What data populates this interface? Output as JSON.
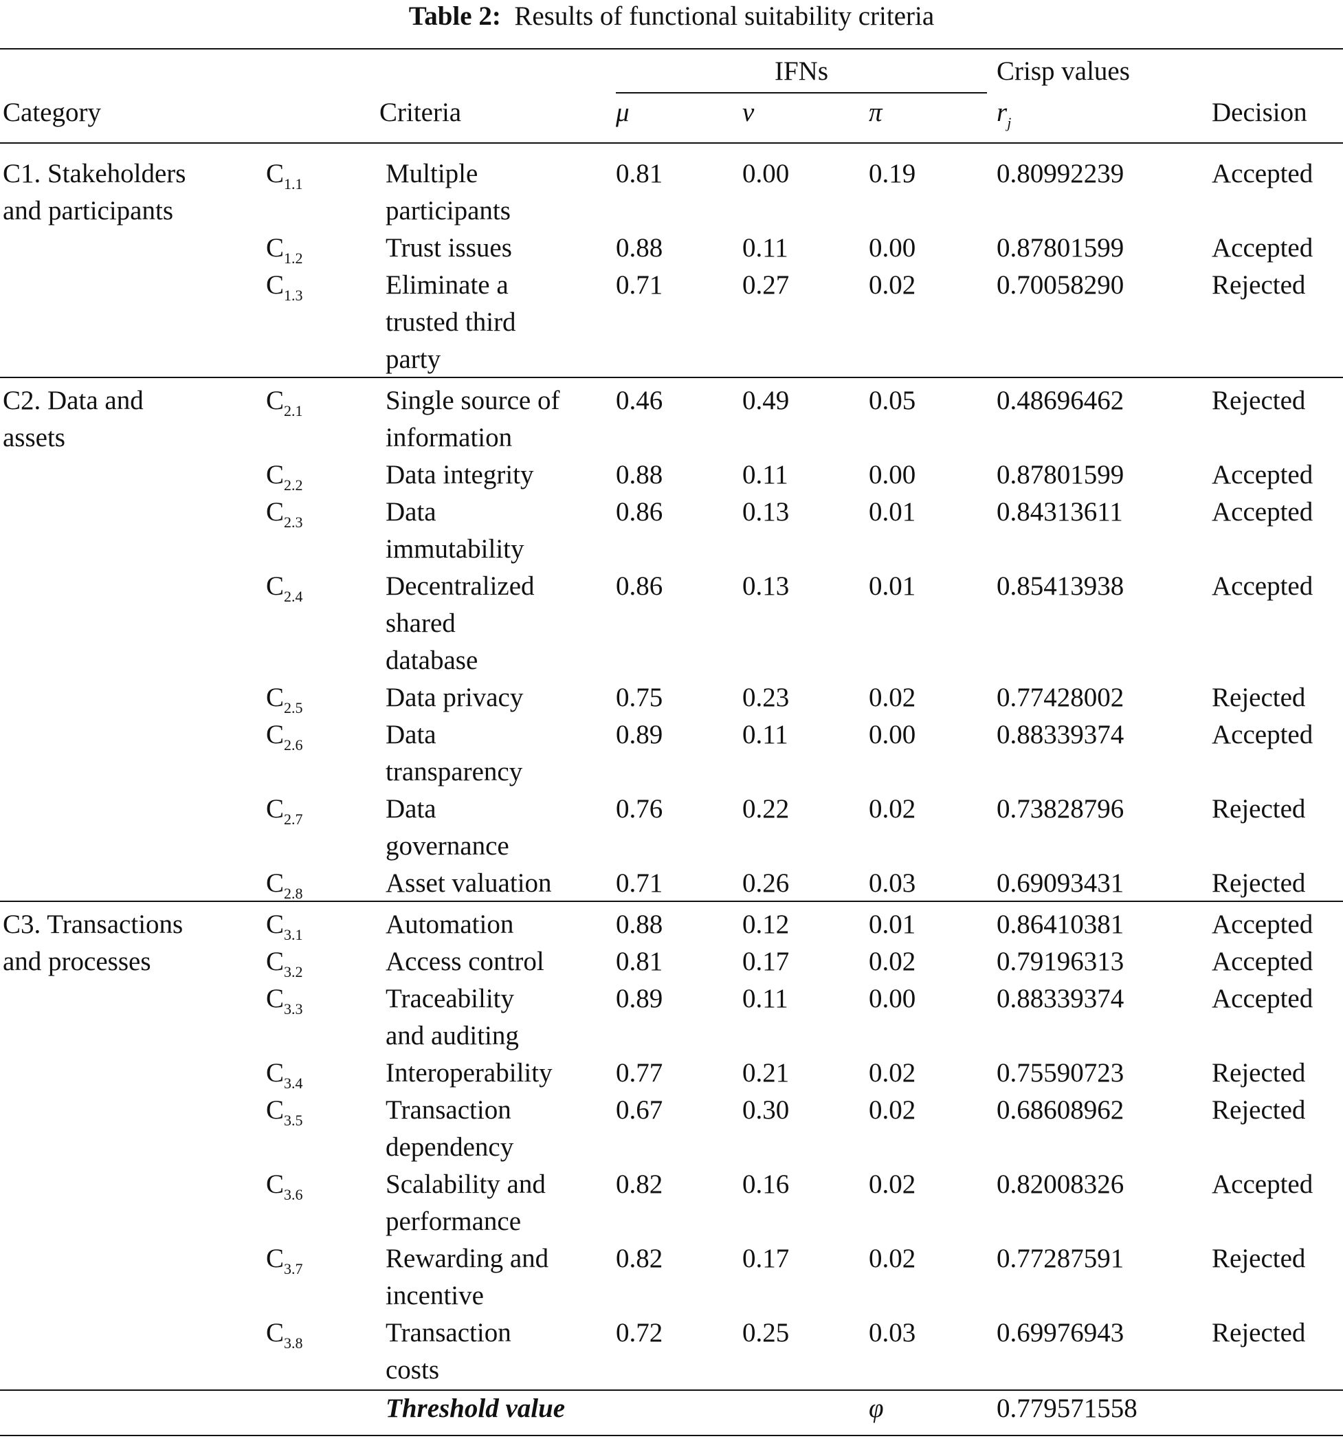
{
  "title": {
    "label": "Table 2:",
    "text": "Results of functional suitability criteria"
  },
  "header": {
    "group_ifns": "IFNs",
    "group_crisp": "Crisp values",
    "category": "Category",
    "criteria": "Criteria",
    "mu": "μ",
    "nu": "v",
    "pi": "π",
    "r": {
      "base": "r",
      "sub": "j"
    },
    "decision": "Decision"
  },
  "groups": [
    {
      "category": [
        "C1. Stakeholders",
        "and participants"
      ],
      "rows": [
        {
          "code": {
            "base": "C",
            "sub": "1.1"
          },
          "criteria": [
            "Multiple",
            "participants"
          ],
          "mu": "0.81",
          "nu": "0.00",
          "pi": "0.19",
          "r": "0.80992239",
          "decision": "Accepted"
        },
        {
          "code": {
            "base": "C",
            "sub": "1.2"
          },
          "criteria": [
            "Trust issues"
          ],
          "mu": "0.88",
          "nu": "0.11",
          "pi": "0.00",
          "r": "0.87801599",
          "decision": "Accepted"
        },
        {
          "code": {
            "base": "C",
            "sub": "1.3"
          },
          "criteria": [
            "Eliminate a",
            "trusted third",
            "party"
          ],
          "mu": "0.71",
          "nu": "0.27",
          "pi": "0.02",
          "r": "0.70058290",
          "decision": "Rejected"
        }
      ]
    },
    {
      "category": [
        "C2. Data and",
        "assets"
      ],
      "rows": [
        {
          "code": {
            "base": "C",
            "sub": "2.1"
          },
          "criteria": [
            "Single source of",
            "information"
          ],
          "mu": "0.46",
          "nu": "0.49",
          "pi": "0.05",
          "r": "0.48696462",
          "decision": "Rejected"
        },
        {
          "code": {
            "base": "C",
            "sub": "2.2"
          },
          "criteria": [
            "Data integrity"
          ],
          "mu": "0.88",
          "nu": "0.11",
          "pi": "0.00",
          "r": "0.87801599",
          "decision": "Accepted"
        },
        {
          "code": {
            "base": "C",
            "sub": "2.3"
          },
          "criteria": [
            "Data",
            "immutability"
          ],
          "mu": "0.86",
          "nu": "0.13",
          "pi": "0.01",
          "r": "0.84313611",
          "decision": "Accepted"
        },
        {
          "code": {
            "base": "C",
            "sub": "2.4"
          },
          "criteria": [
            "Decentralized",
            "shared",
            "database"
          ],
          "mu": "0.86",
          "nu": "0.13",
          "pi": "0.01",
          "r": "0.85413938",
          "decision": "Accepted"
        },
        {
          "code": {
            "base": "C",
            "sub": "2.5"
          },
          "criteria": [
            "Data privacy"
          ],
          "mu": "0.75",
          "nu": "0.23",
          "pi": "0.02",
          "r": "0.77428002",
          "decision": "Rejected"
        },
        {
          "code": {
            "base": "C",
            "sub": "2.6"
          },
          "criteria": [
            "Data",
            "transparency"
          ],
          "mu": "0.89",
          "nu": "0.11",
          "pi": "0.00",
          "r": "0.88339374",
          "decision": "Accepted"
        },
        {
          "code": {
            "base": "C",
            "sub": "2.7"
          },
          "criteria": [
            "Data",
            "governance"
          ],
          "mu": "0.76",
          "nu": "0.22",
          "pi": "0.02",
          "r": "0.73828796",
          "decision": "Rejected"
        },
        {
          "code": {
            "base": "C",
            "sub": "2.8"
          },
          "criteria": [
            "Asset valuation"
          ],
          "mu": "0.71",
          "nu": "0.26",
          "pi": "0.03",
          "r": "0.69093431",
          "decision": "Rejected"
        }
      ]
    },
    {
      "category": [
        "C3. Transactions",
        "and processes"
      ],
      "rows": [
        {
          "code": {
            "base": "C",
            "sub": "3.1"
          },
          "criteria": [
            "Automation"
          ],
          "mu": "0.88",
          "nu": "0.12",
          "pi": "0.01",
          "r": "0.86410381",
          "decision": "Accepted"
        },
        {
          "code": {
            "base": "C",
            "sub": "3.2"
          },
          "criteria": [
            "Access control"
          ],
          "mu": "0.81",
          "nu": "0.17",
          "pi": "0.02",
          "r": "0.79196313",
          "decision": "Accepted"
        },
        {
          "code": {
            "base": "C",
            "sub": "3.3"
          },
          "criteria": [
            "Traceability",
            "and auditing"
          ],
          "mu": "0.89",
          "nu": "0.11",
          "pi": "0.00",
          "r": "0.88339374",
          "decision": "Accepted"
        },
        {
          "code": {
            "base": "C",
            "sub": "3.4"
          },
          "criteria": [
            "Interoperability"
          ],
          "mu": "0.77",
          "nu": "0.21",
          "pi": "0.02",
          "r": "0.75590723",
          "decision": "Rejected"
        },
        {
          "code": {
            "base": "C",
            "sub": "3.5"
          },
          "criteria": [
            "Transaction",
            "dependency"
          ],
          "mu": "0.67",
          "nu": "0.30",
          "pi": "0.02",
          "r": "0.68608962",
          "decision": "Rejected"
        },
        {
          "code": {
            "base": "C",
            "sub": "3.6"
          },
          "criteria": [
            "Scalability and",
            "performance"
          ],
          "mu": "0.82",
          "nu": "0.16",
          "pi": "0.02",
          "r": "0.82008326",
          "decision": "Accepted"
        },
        {
          "code": {
            "base": "C",
            "sub": "3.7"
          },
          "criteria": [
            "Rewarding and",
            "incentive"
          ],
          "mu": "0.82",
          "nu": "0.17",
          "pi": "0.02",
          "r": "0.77287591",
          "decision": "Rejected"
        },
        {
          "code": {
            "base": "C",
            "sub": "3.8"
          },
          "criteria": [
            "Transaction",
            "costs"
          ],
          "mu": "0.72",
          "nu": "0.25",
          "pi": "0.03",
          "r": "0.69976943",
          "decision": "Rejected"
        }
      ]
    }
  ],
  "footer": {
    "label": "Threshold value",
    "symbol": "φ",
    "value": "0.779571558"
  }
}
